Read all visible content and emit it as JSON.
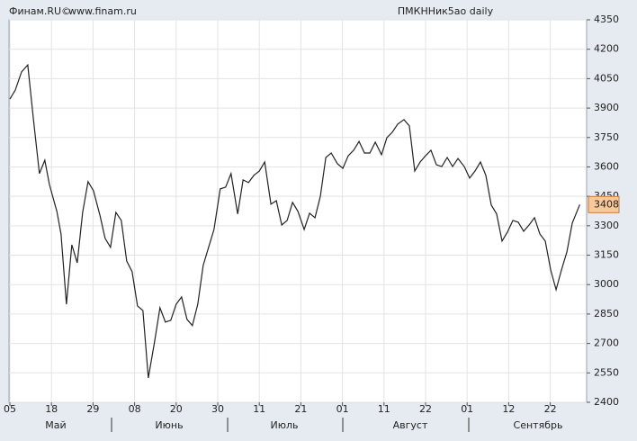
{
  "chart_data": {
    "type": "line",
    "source": "Финам.RU©",
    "site": "www.finam.ru",
    "title": "ПМКННик5ао daily",
    "x": [
      0,
      1.3,
      2.8,
      4.3,
      5.6,
      7.1,
      8.4,
      9.5,
      11.3,
      12.3,
      13.6,
      14.9,
      16.2,
      17.5,
      18.8,
      20.1,
      21.7,
      22.9,
      24.2,
      25.5,
      26.8,
      28.1,
      29.4,
      30.7,
      32.0,
      33.3,
      34.8,
      36.1,
      37.4,
      38.7,
      40.0,
      41.3,
      42.6,
      43.9,
      45.2,
      46.5,
      47.8,
      49.1,
      50.6,
      51.9,
      53.2,
      54.8,
      56.1,
      57.4,
      58.7,
      60.0,
      61.3,
      62.8,
      64.1,
      65.4,
      66.7,
      68.0,
      69.3,
      70.8,
      72.1,
      73.4,
      74.7,
      76.0,
      77.3,
      78.8,
      80.1,
      81.4,
      82.7,
      84.0,
      85.3,
      86.6,
      87.9,
      89.4,
      90.7,
      92.0,
      93.3,
      94.8,
      96.1,
      97.4,
      98.7,
      100.0,
      101.3,
      102.6,
      103.9,
      105.2,
      106.5,
      107.8,
      109.3,
      110.6,
      111.9,
      113.2,
      114.5,
      115.8,
      117.1,
      118.4,
      119.7,
      121.0,
      122.3,
      123.6,
      124.9,
      126.2,
      127.5,
      128.8,
      130.1,
      131.4,
      132.7,
      134.0,
      135.3,
      137.1
    ],
    "series": [
      {
        "name": "ПМКННик5ао",
        "color": "#222222",
        "values": [
          3946,
          3992,
          4084,
          4120,
          3855,
          3566,
          3634,
          3511,
          3373,
          3258,
          2900,
          3203,
          3111,
          3368,
          3525,
          3479,
          3350,
          3236,
          3190,
          3368,
          3327,
          3120,
          3066,
          2891,
          2868,
          2524,
          2708,
          2882,
          2809,
          2818,
          2900,
          2937,
          2823,
          2791,
          2900,
          3098,
          3190,
          3281,
          3488,
          3497,
          3566,
          3360,
          3534,
          3520,
          3557,
          3579,
          3625,
          3410,
          3428,
          3304,
          3327,
          3419,
          3373,
          3281,
          3364,
          3341,
          3451,
          3648,
          3671,
          3616,
          3593,
          3657,
          3685,
          3730,
          3671,
          3671,
          3726,
          3662,
          3749,
          3777,
          3818,
          3841,
          3809,
          3579,
          3625,
          3657,
          3685,
          3611,
          3602,
          3648,
          3602,
          3643,
          3602,
          3543,
          3579,
          3625,
          3557,
          3406,
          3360,
          3222,
          3268,
          3327,
          3318,
          3272,
          3304,
          3341,
          3258,
          3222,
          3075,
          2974,
          3075,
          3167,
          3314,
          3408
        ]
      }
    ],
    "last_price": 3408,
    "xlim": [
      0,
      139
    ],
    "xticks": [
      {
        "value": 0,
        "label": "05"
      },
      {
        "value": 10,
        "label": "18"
      },
      {
        "value": 20,
        "label": "29"
      },
      {
        "value": 30,
        "label": "08"
      },
      {
        "value": 40,
        "label": "20"
      },
      {
        "value": 50,
        "label": "30"
      },
      {
        "value": 60,
        "label": "11"
      },
      {
        "value": 70,
        "label": "21"
      },
      {
        "value": 80,
        "label": "01"
      },
      {
        "value": 90,
        "label": "11"
      },
      {
        "value": 100,
        "label": "22"
      },
      {
        "value": 110,
        "label": "01"
      },
      {
        "value": 120,
        "label": "12"
      },
      {
        "value": 130,
        "label": "22"
      }
    ],
    "months": [
      "Май",
      "Июнь",
      "Июль",
      "Август",
      "Сентябрь"
    ],
    "ylim": [
      2400,
      4350
    ],
    "yticks": [
      2400,
      2550,
      2700,
      2850,
      3000,
      3150,
      3300,
      3450,
      3600,
      3750,
      3900,
      4050,
      4200,
      4350
    ],
    "grid": true
  }
}
